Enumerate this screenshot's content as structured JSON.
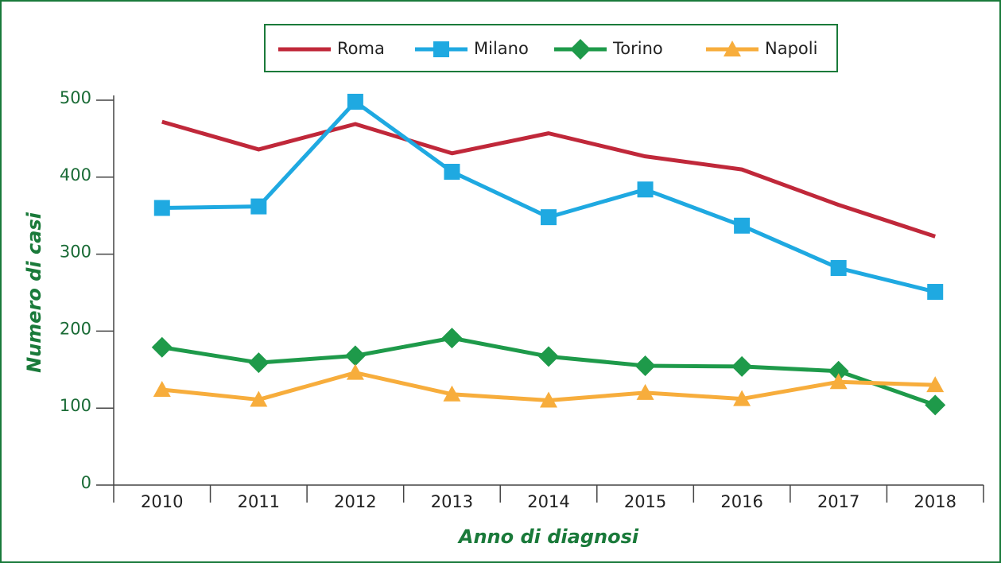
{
  "chart_data": {
    "type": "line",
    "x_label": "Anno di diagnosi",
    "y_label": "Numero di casi",
    "categories": [
      "2010",
      "2011",
      "2012",
      "2013",
      "2014",
      "2015",
      "2016",
      "2017",
      "2018"
    ],
    "series": [
      {
        "name": "Roma",
        "color": "#c0283a",
        "marker": "none",
        "values": [
          472,
          436,
          469,
          431,
          457,
          427,
          410,
          364,
          323
        ]
      },
      {
        "name": "Milano",
        "color": "#1fa9e1",
        "marker": "square",
        "values": [
          360,
          362,
          498,
          407,
          348,
          384,
          337,
          282,
          251
        ]
      },
      {
        "name": "Torino",
        "color": "#1e9a4a",
        "marker": "diamond",
        "values": [
          179,
          159,
          168,
          191,
          167,
          155,
          154,
          148,
          104
        ]
      },
      {
        "name": "Napoli",
        "color": "#f7ad3c",
        "marker": "triangle",
        "values": [
          124,
          111,
          146,
          118,
          110,
          120,
          112,
          134,
          130
        ]
      }
    ],
    "ylim": [
      0,
      500
    ],
    "yticks": [
      0,
      100,
      200,
      300,
      400,
      500
    ],
    "grid": false,
    "legend": "top"
  }
}
